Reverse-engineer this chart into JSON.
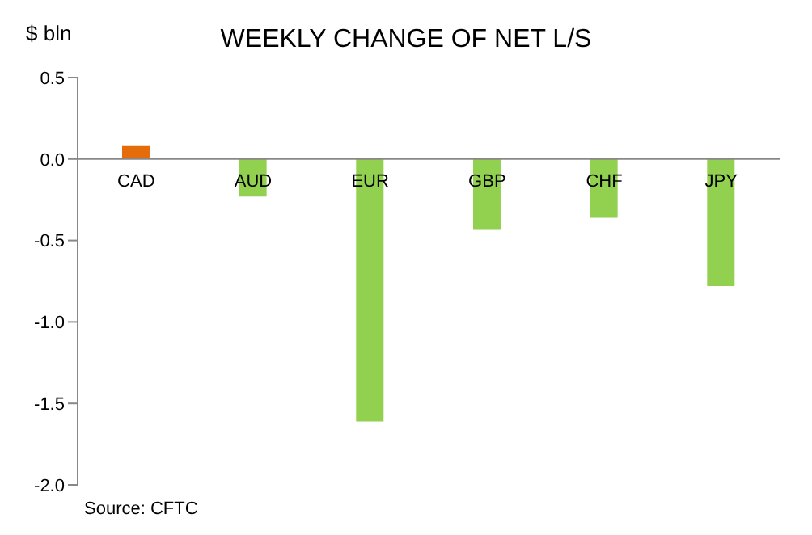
{
  "chart_data": {
    "type": "bar",
    "title": "WEEKLY CHANGE OF NET L/S",
    "ylabel": "$ bln",
    "categories": [
      "CAD",
      "AUD",
      "EUR",
      "GBP",
      "CHF",
      "JPY"
    ],
    "values": [
      0.08,
      -0.23,
      -1.61,
      -0.43,
      -0.36,
      -0.78
    ],
    "colors": [
      "#e46c0a",
      "#92d050",
      "#92d050",
      "#92d050",
      "#92d050",
      "#92d050"
    ],
    "ylim": [
      -2.0,
      0.5
    ],
    "yticks": [
      {
        "value": 0.5,
        "label": "0.5"
      },
      {
        "value": 0,
        "label": "0.0"
      },
      {
        "value": -0.5,
        "label": "-0.5"
      },
      {
        "value": -1,
        "label": "-1.0"
      },
      {
        "value": -1.5,
        "label": "-1.5"
      },
      {
        "value": -2,
        "label": "-2.0"
      }
    ],
    "grid": false,
    "annotations": [
      "Source: CFTC"
    ]
  }
}
